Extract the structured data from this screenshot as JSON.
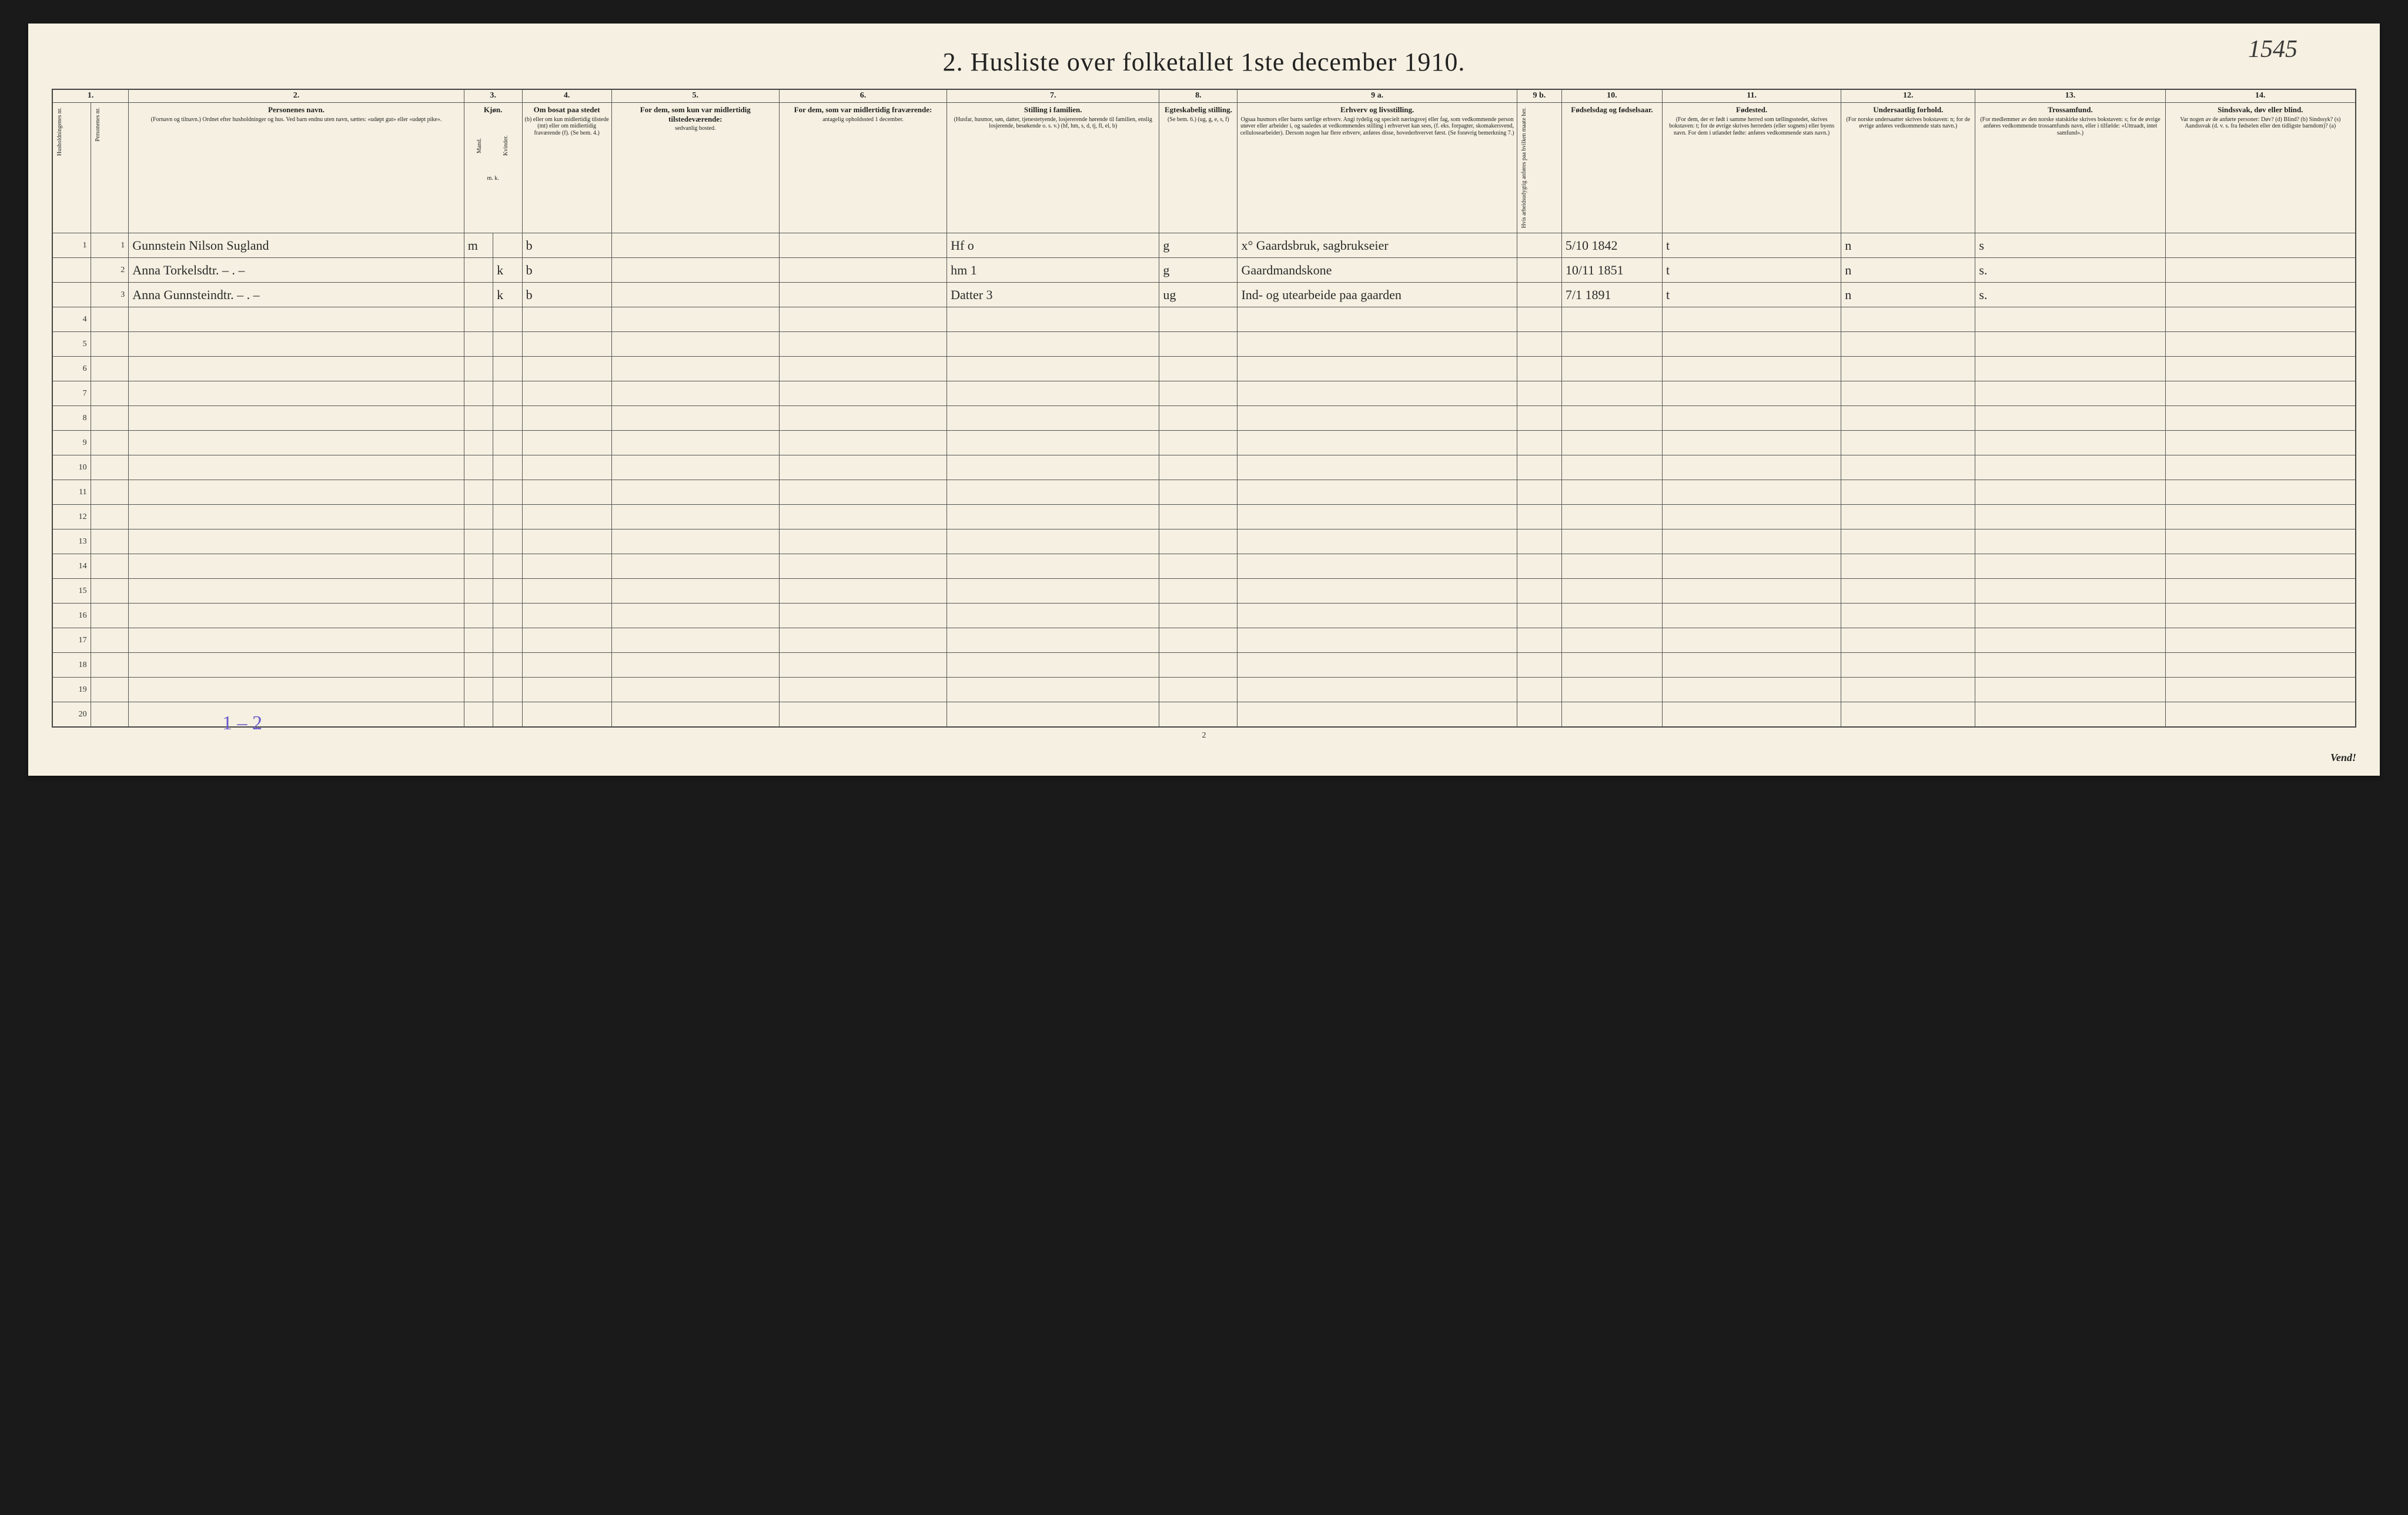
{
  "page_number_hand": "1545",
  "title": "2.  Husliste over folketallet 1ste december 1910.",
  "footer_page": "2",
  "vend": "Vend!",
  "pencil_note": "1 – 2",
  "col_nums": [
    "1.",
    "",
    "2.",
    "3.",
    "",
    "4.",
    "5.",
    "6.",
    "7.",
    "8.",
    "9 a.",
    "9 b.",
    "10.",
    "11.",
    "12.",
    "13.",
    "14."
  ],
  "headers": {
    "c1a": "Husholdningenes nr.",
    "c1b": "Personenes nr.",
    "c2_title": "Personenes navn.",
    "c2_sub": "(Fornavn og tilnavn.)\nOrdnet efter husholdninger og hus.\nVed barn endnu uten navn, sættes: «udøpt gut» eller «udøpt pike».",
    "c3_title": "Kjøn.",
    "c3a": "Mand.",
    "c3b": "Kvinder.",
    "c3_sub": "m.  k.",
    "c4_title": "Om bosat paa stedet",
    "c4_sub": "(b) eller om kun midlertidig tilstede (mt) eller om midlertidig fraværende (f).\n(Se bem. 4.)",
    "c5_title": "For dem, som kun var midlertidig tilstedeværende:",
    "c5_sub": "sedvanlig bosted.",
    "c6_title": "For dem, som var midlertidig fraværende:",
    "c6_sub": "antagelig opholdssted 1 december.",
    "c7_title": "Stilling i familien.",
    "c7_sub": "(Husfar, husmor, søn, datter, tjenestetyende, losjererende hørende til familien, enslig losjerende, besøkende o. s. v.)\n(hf, hm, s, d, tj, fl, el, b)",
    "c8_title": "Egteskabelig stilling.",
    "c8_sub": "(Se bem. 6.)\n(ug, g, e, s, f)",
    "c9a_title": "Erhverv og livsstilling.",
    "c9a_sub": "Ogsaa husmors eller barns særlige erhverv. Angi tydelig og specielt næringsvej eller fag, som vedkommende person utøver eller arbeider i, og saaledes at vedkommendes stilling i erhvervet kan sees, (f. eks. forpagter, skomakersvend, cellulosearbeider). Dersom nogen har flere erhverv, anføres disse, hovederhvervet først.\n(Se forøvrig bemerkning 7.)",
    "c9b": "Hvis arbeidsudygtig anføres paa hvilken maate her.",
    "c10_title": "Fødselsdag og fødselsaar.",
    "c11_title": "Fødested.",
    "c11_sub": "(For dem, der er født i samme herred som tællingsstedet, skrives bokstaven: t; for de øvrige skrives herredets (eller sognets) eller byens navn. For dem i utlandet fødte: anføres vedkommende stats navn.)",
    "c12_title": "Undersaatlig forhold.",
    "c12_sub": "(For norske undersaatter skrives bokstaven: n; for de øvrige anføres vedkommende stats navn.)",
    "c13_title": "Trossamfund.",
    "c13_sub": "(For medlemmer av den norske statskirke skrives bokstaven: s; for de øvrige anføres vedkommende trossamfunds navn, eller i tilfælde: «Uttraadt, intet samfund».)",
    "c14_title": "Sindssvak, døv eller blind.",
    "c14_sub": "Var nogen av de anførte personer:\nDøv?        (d)\nBlind?      (b)\nSindssyk?   (s)\nAandssvak (d. v. s. fra fødselen eller den tidligste barndom)? (a)"
  },
  "rows": [
    {
      "hh": "1",
      "pn": "1",
      "name": "Gunnstein Nilson Sugland",
      "sex_m": "m",
      "sex_k": "",
      "res": "b",
      "c5": "",
      "c6": "",
      "fam": "Hf     o",
      "mar": "g",
      "occ": "x°  Gaardsbruk, sagbrukseier",
      "c9b": "",
      "dob": "5/10 1842",
      "born": "t",
      "nat": "n",
      "rel": "s",
      "c14": ""
    },
    {
      "hh": "",
      "pn": "2",
      "name": "Anna Torkelsdtr.        – . –",
      "sex_m": "",
      "sex_k": "k",
      "res": "b",
      "c5": "",
      "c6": "",
      "fam": "hm    1",
      "mar": "g",
      "occ": "Gaardmandskone",
      "c9b": "",
      "dob": "10/11 1851",
      "born": "t",
      "nat": "n",
      "rel": "s.",
      "c14": ""
    },
    {
      "hh": "",
      "pn": "3",
      "name": "Anna Gunnsteindtr.   – . –",
      "sex_m": "",
      "sex_k": "k",
      "res": "b",
      "c5": "",
      "c6": "",
      "fam": "Datter  3",
      "mar": "ug",
      "occ": "Ind- og utearbeide paa gaarden",
      "c9b": "",
      "dob": "7/1 1891",
      "born": "t",
      "nat": "n",
      "rel": "s.",
      "c14": ""
    }
  ],
  "blank_row_count": 17,
  "row_labels": [
    "1",
    "2",
    "3",
    "4",
    "5",
    "6",
    "7",
    "8",
    "9",
    "10",
    "11",
    "12",
    "13",
    "14",
    "15",
    "16",
    "17",
    "18",
    "19",
    "20"
  ]
}
